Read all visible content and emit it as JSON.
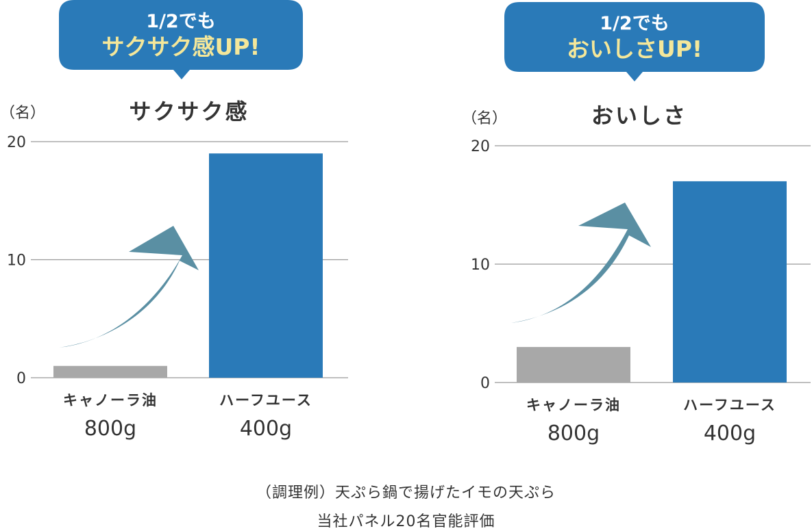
{
  "colors": {
    "bubble": "#2a7ab8",
    "bubble_line1": "#ffffff",
    "bubble_line2": "#f4e79a",
    "canola_bar": "#a8a8a8",
    "halfuse_bar": "#2a7ab8",
    "arrow": "#5a8fa3",
    "grid": "#999999"
  },
  "chart_data": [
    {
      "type": "bar",
      "title": "サクサク感",
      "callout": {
        "line1": "1/2でも",
        "line2": "サクサク感UP!"
      },
      "unit": "（名）",
      "categories": [
        {
          "name": "キャノーラ油",
          "amount": "800g"
        },
        {
          "name": "ハーフユース",
          "amount": "400g"
        }
      ],
      "values": [
        1,
        19
      ],
      "ylim": [
        0,
        20
      ],
      "yticks": [
        0,
        10,
        20
      ],
      "arrow": "curved-up-right"
    },
    {
      "type": "bar",
      "title": "おいしさ",
      "callout": {
        "line1": "1/2でも",
        "line2": "おいしさUP!"
      },
      "unit": "（名）",
      "categories": [
        {
          "name": "キャノーラ油",
          "amount": "800g"
        },
        {
          "name": "ハーフユース",
          "amount": "400g"
        }
      ],
      "values": [
        3,
        17
      ],
      "ylim": [
        0,
        20
      ],
      "yticks": [
        0,
        10,
        20
      ],
      "arrow": "curved-up-right"
    }
  ],
  "footer": {
    "line1": "（調理例）天ぷら鍋で揚げたイモの天ぷら",
    "line2": "当社パネル20名官能評価"
  }
}
